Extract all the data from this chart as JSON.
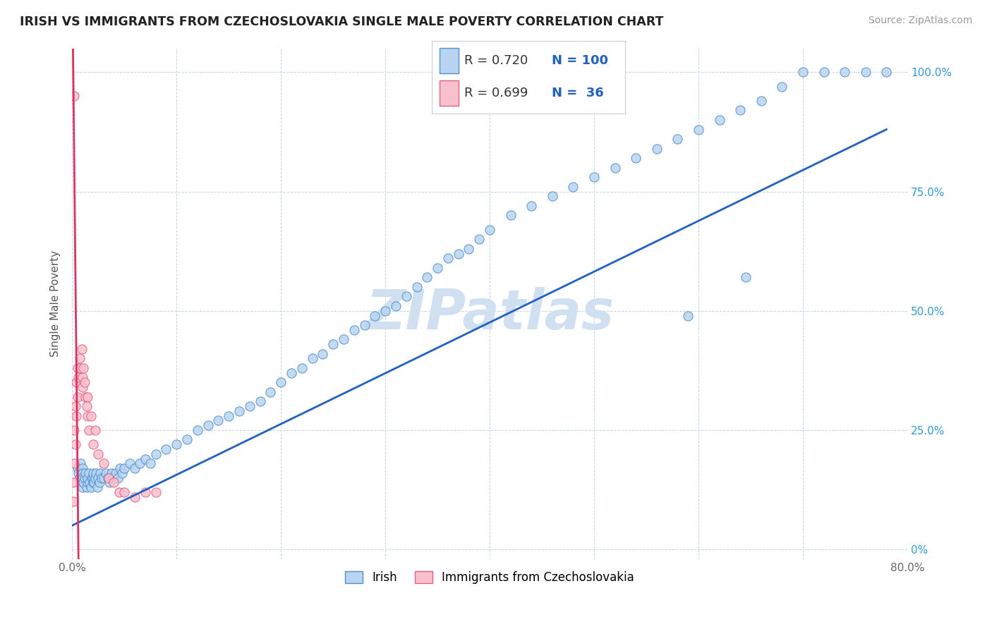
{
  "title": "IRISH VS IMMIGRANTS FROM CZECHOSLOVAKIA SINGLE MALE POVERTY CORRELATION CHART",
  "source": "Source: ZipAtlas.com",
  "ylabel": "Single Male Poverty",
  "blue_label": "Irish",
  "pink_label": "Immigrants from Czechoslovakia",
  "blue_R": "0.720",
  "blue_N": "100",
  "pink_R": "0.699",
  "pink_N": "36",
  "blue_color": "#b8d4f0",
  "blue_edge_color": "#5090d0",
  "blue_line_color": "#2060c0",
  "pink_color": "#f8c0cc",
  "pink_edge_color": "#e06080",
  "pink_line_color": "#e03060",
  "background_color": "#ffffff",
  "grid_color": "#c0d0e0",
  "watermark": "ZIPatlas",
  "watermark_color": "#d0e0f0",
  "legend_text_color_R": "#333333",
  "legend_text_color_N": "#2060c0",
  "right_axis_color": "#3399cc",
  "xlim": [
    0.0,
    0.8
  ],
  "ylim": [
    -0.02,
    1.05
  ],
  "blue_x": [
    0.005,
    0.006,
    0.007,
    0.008,
    0.009,
    0.01,
    0.01,
    0.01,
    0.01,
    0.011,
    0.012,
    0.013,
    0.014,
    0.015,
    0.015,
    0.016,
    0.017,
    0.018,
    0.019,
    0.02,
    0.02,
    0.02,
    0.021,
    0.022,
    0.023,
    0.024,
    0.025,
    0.026,
    0.027,
    0.028,
    0.03,
    0.032,
    0.034,
    0.036,
    0.038,
    0.04,
    0.042,
    0.044,
    0.046,
    0.048,
    0.05,
    0.055,
    0.06,
    0.065,
    0.07,
    0.075,
    0.08,
    0.09,
    0.1,
    0.11,
    0.12,
    0.13,
    0.14,
    0.15,
    0.16,
    0.17,
    0.18,
    0.19,
    0.2,
    0.21,
    0.22,
    0.23,
    0.24,
    0.25,
    0.26,
    0.27,
    0.28,
    0.29,
    0.3,
    0.31,
    0.32,
    0.33,
    0.34,
    0.35,
    0.36,
    0.37,
    0.38,
    0.39,
    0.4,
    0.42,
    0.44,
    0.46,
    0.48,
    0.5,
    0.52,
    0.54,
    0.56,
    0.58,
    0.6,
    0.62,
    0.64,
    0.66,
    0.68,
    0.7,
    0.72,
    0.74,
    0.76,
    0.78,
    0.645,
    0.59
  ],
  "blue_y": [
    0.17,
    0.16,
    0.15,
    0.18,
    0.14,
    0.13,
    0.17,
    0.16,
    0.15,
    0.14,
    0.15,
    0.16,
    0.13,
    0.14,
    0.15,
    0.16,
    0.14,
    0.13,
    0.15,
    0.14,
    0.15,
    0.16,
    0.14,
    0.15,
    0.16,
    0.13,
    0.15,
    0.14,
    0.16,
    0.15,
    0.15,
    0.16,
    0.15,
    0.14,
    0.16,
    0.15,
    0.16,
    0.15,
    0.17,
    0.16,
    0.17,
    0.18,
    0.17,
    0.18,
    0.19,
    0.18,
    0.2,
    0.21,
    0.22,
    0.23,
    0.25,
    0.26,
    0.27,
    0.28,
    0.29,
    0.3,
    0.31,
    0.33,
    0.35,
    0.37,
    0.38,
    0.4,
    0.41,
    0.43,
    0.44,
    0.46,
    0.47,
    0.49,
    0.5,
    0.51,
    0.53,
    0.55,
    0.57,
    0.59,
    0.61,
    0.62,
    0.63,
    0.65,
    0.67,
    0.7,
    0.72,
    0.74,
    0.76,
    0.78,
    0.8,
    0.82,
    0.84,
    0.86,
    0.88,
    0.9,
    0.92,
    0.94,
    0.97,
    1.0,
    1.0,
    1.0,
    1.0,
    1.0,
    0.57,
    0.49
  ],
  "pink_x": [
    0.001,
    0.001,
    0.002,
    0.002,
    0.003,
    0.003,
    0.004,
    0.004,
    0.005,
    0.005,
    0.006,
    0.007,
    0.008,
    0.009,
    0.01,
    0.01,
    0.011,
    0.012,
    0.013,
    0.014,
    0.015,
    0.015,
    0.016,
    0.018,
    0.02,
    0.022,
    0.025,
    0.03,
    0.035,
    0.04,
    0.045,
    0.05,
    0.06,
    0.07,
    0.08,
    0.002
  ],
  "pink_y": [
    0.1,
    0.14,
    0.18,
    0.25,
    0.22,
    0.3,
    0.28,
    0.35,
    0.32,
    0.38,
    0.36,
    0.4,
    0.38,
    0.42,
    0.34,
    0.36,
    0.38,
    0.35,
    0.32,
    0.3,
    0.28,
    0.32,
    0.25,
    0.28,
    0.22,
    0.25,
    0.2,
    0.18,
    0.15,
    0.14,
    0.12,
    0.12,
    0.11,
    0.12,
    0.12,
    0.95
  ],
  "blue_line_x": [
    0.0,
    0.78
  ],
  "blue_line_y": [
    0.05,
    0.88
  ],
  "pink_line_x_start": 0.0,
  "pink_line_x_end": 0.06,
  "xticks": [
    0.0,
    0.1,
    0.2,
    0.3,
    0.4,
    0.5,
    0.6,
    0.7,
    0.8
  ],
  "xtick_labels": [
    "0.0%",
    "",
    "",
    "",
    "",
    "",
    "",
    "",
    "80.0%"
  ],
  "yticks": [
    0.0,
    0.25,
    0.5,
    0.75,
    1.0
  ],
  "ytick_labels_right": [
    "0%",
    "25.0%",
    "50.0%",
    "75.0%",
    "100.0%"
  ]
}
